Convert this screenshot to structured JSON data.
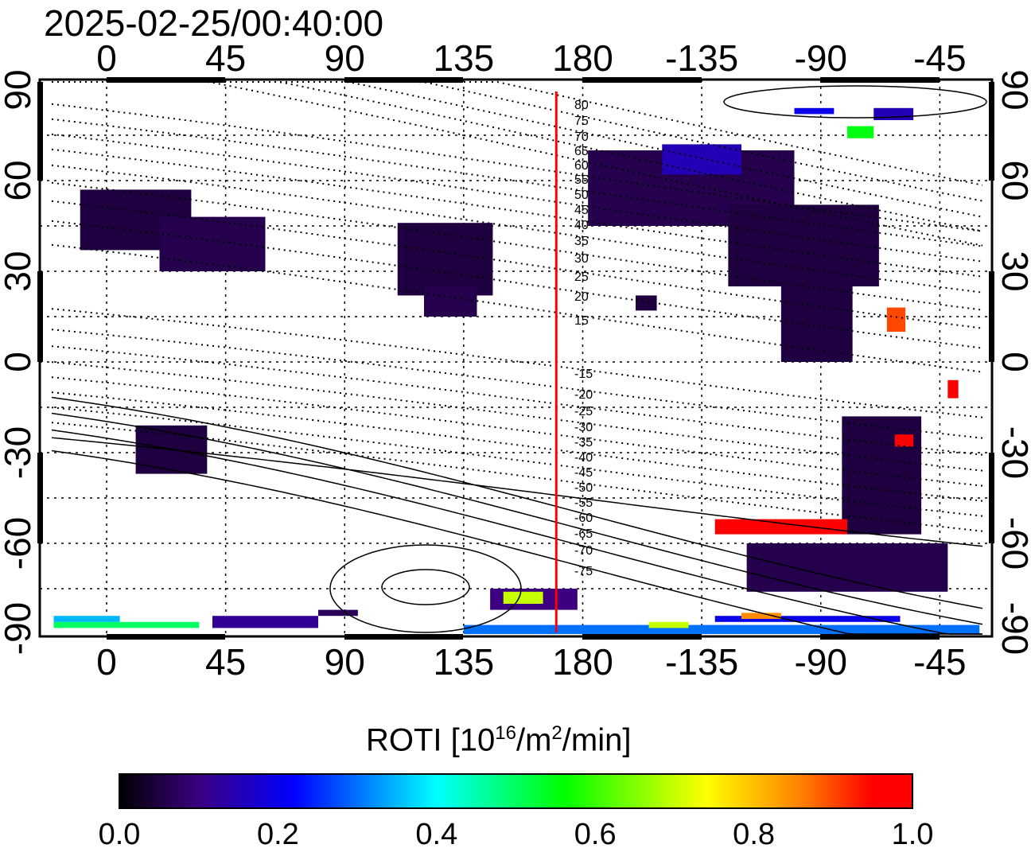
{
  "timestamp": "2025-02-25/00:40:00",
  "map": {
    "top_lon_ticks": [
      "0",
      "45",
      "90",
      "135",
      "180",
      "-135",
      "-90",
      "-45"
    ],
    "bottom_lon_ticks": [
      "0",
      "45",
      "90",
      "135",
      "180",
      "-135",
      "-90",
      "-45"
    ],
    "lon_tick_values": [
      0,
      45,
      90,
      135,
      180,
      225,
      270,
      315
    ],
    "left_lat_ticks": [
      "90",
      "60",
      "30",
      "0",
      "-30",
      "-60",
      "-90"
    ],
    "right_lat_ticks": [
      "90",
      "60",
      "30",
      "0",
      "-30",
      "-60",
      "-90"
    ],
    "lat_tick_values": [
      90,
      60,
      30,
      0,
      -30,
      -60,
      -90
    ],
    "marker_line_lon": 170,
    "marker_line_color": "#ff0000",
    "mag_lat_labels": [
      "80",
      "75",
      "70",
      "65",
      "60",
      "55",
      "50",
      "45",
      "40",
      "35",
      "30",
      "25",
      "20",
      "15",
      "-15",
      "-20",
      "-25",
      "-30",
      "-35",
      "-40",
      "-45",
      "-50",
      "-55",
      "-60",
      "-65",
      "-70",
      "-75"
    ],
    "roti_patches": [
      {
        "lon": [
          -10,
          32
        ],
        "lat": [
          37,
          57
        ],
        "v": 0.05
      },
      {
        "lon": [
          20,
          60
        ],
        "lat": [
          30,
          48
        ],
        "v": 0.06
      },
      {
        "lon": [
          110,
          146
        ],
        "lat": [
          22,
          46
        ],
        "v": 0.05
      },
      {
        "lon": [
          120,
          140
        ],
        "lat": [
          15,
          25
        ],
        "v": 0.06
      },
      {
        "lon": [
          -178,
          -100
        ],
        "lat": [
          45,
          70
        ],
        "v": 0.06
      },
      {
        "lon": [
          -150,
          -120
        ],
        "lat": [
          62,
          72
        ],
        "v": 0.15
      },
      {
        "lon": [
          -125,
          -68
        ],
        "lat": [
          25,
          52
        ],
        "v": 0.05
      },
      {
        "lon": [
          -105,
          -78
        ],
        "lat": [
          0,
          26
        ],
        "v": 0.05
      },
      {
        "lon": [
          -160,
          -152
        ],
        "lat": [
          17,
          22
        ],
        "v": 0.05
      },
      {
        "lon": [
          -82,
          -52
        ],
        "lat": [
          -57,
          -18
        ],
        "v": 0.05
      },
      {
        "lon": [
          11,
          38
        ],
        "lat": [
          -37,
          -21
        ],
        "v": 0.05
      },
      {
        "lon": [
          -118,
          -42
        ],
        "lat": [
          -76,
          -60
        ],
        "v": 0.06
      },
      {
        "lon": [
          145,
          178
        ],
        "lat": [
          -82,
          -75
        ],
        "v": 0.1
      },
      {
        "lon": [
          80,
          95
        ],
        "lat": [
          -84,
          -82
        ],
        "v": 0.07
      },
      {
        "lon": [
          40,
          80
        ],
        "lat": [
          -88,
          -84
        ],
        "v": 0.12
      },
      {
        "lon": [
          -20,
          35
        ],
        "lat": [
          -88,
          -86
        ],
        "v": 0.5
      },
      {
        "lon": [
          -20,
          5
        ],
        "lat": [
          -86,
          -84
        ],
        "v": 0.35
      },
      {
        "lon": [
          135,
          -30
        ],
        "lat": [
          -90,
          -87
        ],
        "v": 0.3
      },
      {
        "lon": [
          -130,
          -60
        ],
        "lat": [
          -86,
          -84
        ],
        "v": 0.2
      },
      {
        "lon": [
          -130,
          -80
        ],
        "lat": [
          -57,
          -52
        ],
        "v": 0.95
      },
      {
        "lon": [
          -62,
          -55
        ],
        "lat": [
          -28,
          -24
        ],
        "v": 0.95
      },
      {
        "lon": [
          -65,
          -58
        ],
        "lat": [
          10,
          18
        ],
        "v": 0.9
      },
      {
        "lon": [
          -42,
          -38
        ],
        "lat": [
          -12,
          -6
        ],
        "v": 0.95
      },
      {
        "lon": [
          -80,
          -70
        ],
        "lat": [
          74,
          78
        ],
        "v": 0.55
      },
      {
        "lon": [
          -100,
          -85
        ],
        "lat": [
          82,
          84
        ],
        "v": 0.2
      },
      {
        "lon": [
          -70,
          -55
        ],
        "lat": [
          80,
          84
        ],
        "v": 0.15
      },
      {
        "lon": [
          -155,
          -140
        ],
        "lat": [
          -88,
          -86
        ],
        "v": 0.7
      },
      {
        "lon": [
          -120,
          -105
        ],
        "lat": [
          -85,
          -83
        ],
        "v": 0.85
      },
      {
        "lon": [
          150,
          165
        ],
        "lat": [
          -80,
          -76
        ],
        "v": 0.7
      }
    ]
  },
  "colorbar": {
    "title_main": "ROTI  [10",
    "title_exp1": "16",
    "title_mid": "/m",
    "title_exp2": "2",
    "title_end": "/min]",
    "labels": [
      "0.0",
      "0.2",
      "0.4",
      "0.6",
      "0.8",
      "1.0"
    ],
    "stops": [
      "#000000",
      "#3c0080",
      "#0000ff",
      "#00ffff",
      "#00ff00",
      "#ffff00",
      "#ff8000",
      "#ff0000"
    ]
  }
}
